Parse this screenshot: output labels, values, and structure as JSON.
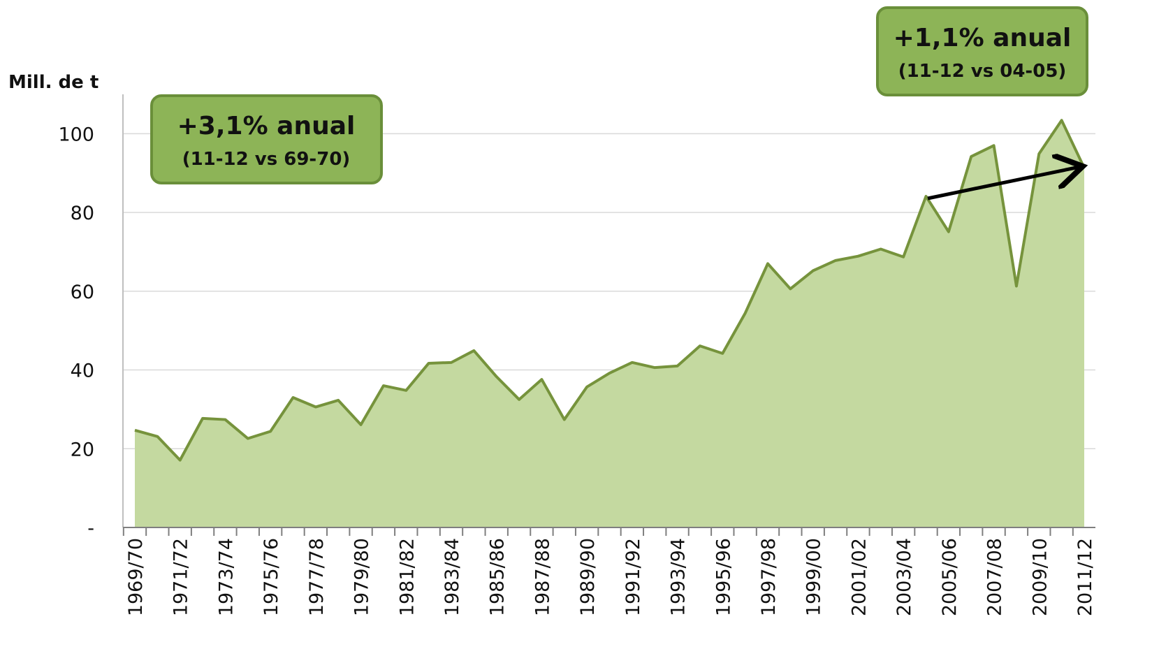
{
  "chart_data": {
    "type": "area",
    "y_label": "Mill. de t",
    "categories": [
      "1969/70",
      null,
      "1971/72",
      null,
      "1973/74",
      null,
      "1975/76",
      null,
      "1977/78",
      null,
      "1979/80",
      null,
      "1981/82",
      null,
      "1983/84",
      null,
      "1985/86",
      null,
      "1987/88",
      null,
      "1989/90",
      null,
      "1991/92",
      null,
      "1993/94",
      null,
      "1995/96",
      null,
      "1997/98",
      null,
      "1999/00",
      null,
      "2001/02",
      null,
      "2003/04",
      null,
      "2005/06",
      null,
      "2007/08",
      null,
      "2009/10",
      null,
      "2011/12"
    ],
    "values": [
      24.7,
      23.1,
      17.1,
      27.7,
      27.4,
      22.6,
      24.4,
      33.0,
      30.6,
      32.3,
      26.1,
      36.0,
      34.8,
      41.7,
      41.9,
      44.9,
      38.3,
      32.5,
      37.6,
      27.4,
      35.7,
      39.2,
      41.9,
      40.6,
      41.0,
      46.1,
      44.2,
      54.4,
      67.0,
      60.6,
      65.2,
      67.8,
      68.9,
      70.7,
      68.7,
      84.1,
      75.1,
      94.2,
      97.0,
      61.3,
      94.9,
      103.4,
      91.3
    ],
    "color": "#76933c",
    "fill": "#c4d9a0",
    "ylim": [
      0,
      110
    ],
    "yticks": [
      {
        "value": 0,
        "label": "-"
      },
      20,
      40,
      60,
      80,
      100
    ],
    "grid": true,
    "annotations": [
      {
        "text": "+3,1% anual",
        "subtext": "(11-12 vs 69-70)"
      },
      {
        "text": "+1,1% anual",
        "subtext": "(11-12 vs 04-05)"
      }
    ]
  }
}
